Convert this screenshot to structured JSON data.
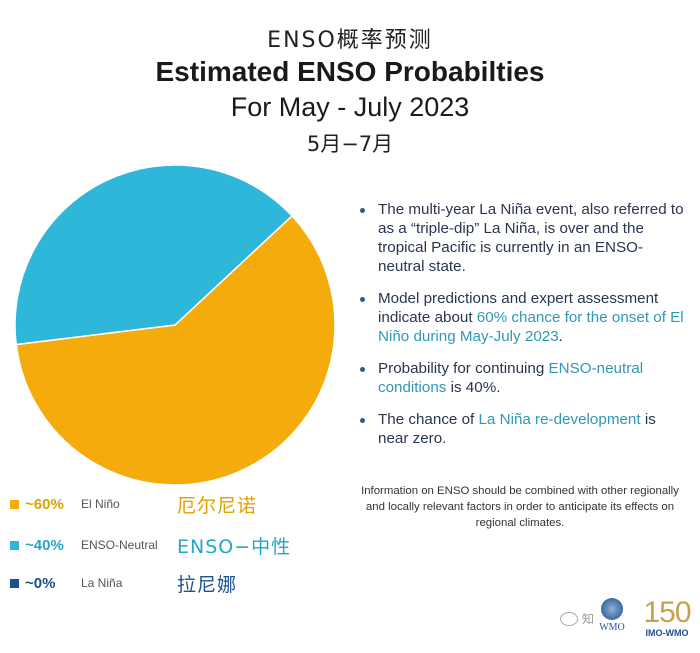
{
  "header": {
    "title_cn": "ENSO概率预测",
    "title_main": "Estimated ENSO Probabilties",
    "subtitle": "For May - July 2023",
    "subtitle_cn": "5月−7月"
  },
  "chart_data": {
    "type": "pie",
    "title": "Estimated ENSO Probabilties",
    "categories": [
      "El Niño",
      "ENSO-Neutral",
      "La Niña"
    ],
    "values": [
      60,
      40,
      0
    ],
    "unit": "%",
    "colors": [
      "#f4ab0b",
      "#2fb7d9",
      "#1d4f91"
    ],
    "legend": "bottom-left"
  },
  "legend": [
    {
      "pct": "~60%",
      "en": "El Niño",
      "cn": "厄尔尼诺",
      "color": "#f4ab0b",
      "text_color": "#e0a200"
    },
    {
      "pct": "~40%",
      "en": "ENSO-Neutral",
      "cn": "ENSO−中性",
      "color": "#2fb7d9",
      "text_color": "#23a6c9"
    },
    {
      "pct": "~0%",
      "en": "La Niña",
      "cn": "拉尼娜",
      "color": "#1d4f91",
      "text_color": "#1d4f91"
    }
  ],
  "bullets": [
    {
      "pre": "The multi-year La Niña event, also referred to as a “triple-dip” La Niña, is over and the tropical Pacific is currently in an ENSO-neutral state.",
      "hl": "",
      "post": ""
    },
    {
      "pre": "Model predictions and expert assessment indicate about ",
      "hl": "60% chance for the onset of El Niño during May-July 2023",
      "post": "."
    },
    {
      "pre": "Probability for continuing ",
      "hl": "ENSO-neutral conditions",
      "post": " is 40%."
    },
    {
      "pre": "The chance of ",
      "hl": "La Niña re-development",
      "post": " is near zero."
    }
  ],
  "note": "Information on ENSO should be combined with other regionally and locally relevant factors in order to anticipate its effects on regional climates.",
  "logos": {
    "watermark": "知",
    "wmo": "WMO",
    "imo_num": "150",
    "imo_label": "IMO-WMO"
  }
}
